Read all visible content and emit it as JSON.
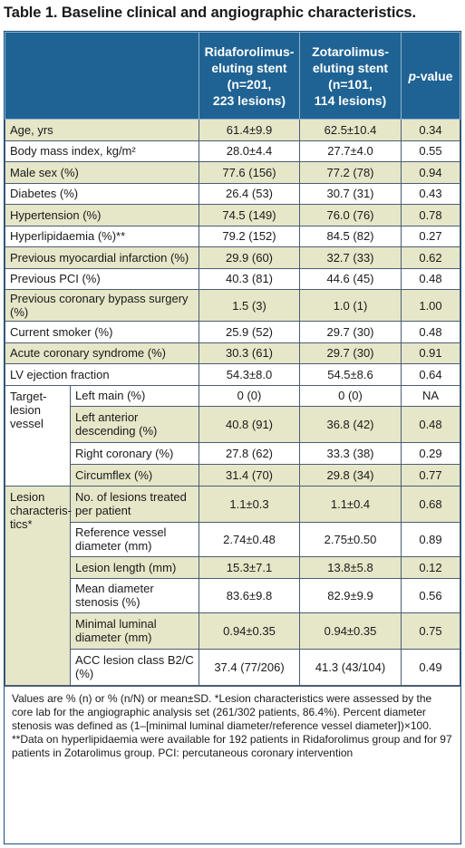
{
  "title": "Table 1. Baseline clinical and angiographic characteristics.",
  "headers": {
    "col1": [
      "Ridaforolimus-",
      "eluting stent",
      "(n=201,",
      "223 lesions)"
    ],
    "col2": [
      "Zotarolimus-",
      "eluting stent",
      "(n=101,",
      "114 lesions)"
    ],
    "pvalue_italic": "p",
    "pvalue_rest": "-value"
  },
  "rows": [
    {
      "label": "Age, yrs",
      "a": "61.4±9.9",
      "b": "62.5±10.4",
      "p": "0.34"
    },
    {
      "label": "Body mass index, kg/m²",
      "a": "28.0±4.4",
      "b": "27.7±4.0",
      "p": "0.55"
    },
    {
      "label": "Male sex (%)",
      "a": "77.6 (156)",
      "b": "77.2 (78)",
      "p": "0.94"
    },
    {
      "label": "Diabetes (%)",
      "a": "26.4 (53)",
      "b": "30.7 (31)",
      "p": "0.43"
    },
    {
      "label": "Hypertension (%)",
      "a": "74.5 (149)",
      "b": "76.0 (76)",
      "p": "0.78"
    },
    {
      "label": "Hyperlipidaemia (%)**",
      "a": "79.2 (152)",
      "b": "84.5 (82)",
      "p": "0.27"
    },
    {
      "label": "Previous myocardial infarction (%)",
      "a": "29.9 (60)",
      "b": "32.7 (33)",
      "p": "0.62"
    },
    {
      "label": "Previous PCI (%)",
      "a": "40.3 (81)",
      "b": "44.6 (45)",
      "p": "0.48"
    },
    {
      "label": "Previous coronary bypass surgery (%)",
      "a": "1.5 (3)",
      "b": "1.0 (1)",
      "p": "1.00"
    },
    {
      "label": "Current smoker (%)",
      "a": "25.9 (52)",
      "b": "29.7 (30)",
      "p": "0.48"
    },
    {
      "label": "Acute coronary syndrome (%)",
      "a": "30.3 (61)",
      "b": "29.7 (30)",
      "p": "0.91"
    },
    {
      "label": "LV ejection fraction",
      "a": "54.3±8.0",
      "b": "54.5±8.6",
      "p": "0.64"
    }
  ],
  "target_vessel": {
    "group": [
      "Target-",
      "lesion",
      "vessel"
    ],
    "rows": [
      {
        "label": "Left main (%)",
        "a": "0 (0)",
        "b": "0 (0)",
        "p": "NA"
      },
      {
        "label": "Left anterior descending (%)",
        "a": "40.8 (91)",
        "b": "36.8 (42)",
        "p": "0.48"
      },
      {
        "label": "Right coronary (%)",
        "a": "27.8 (62)",
        "b": "33.3 (38)",
        "p": "0.29"
      },
      {
        "label": "Circumflex (%)",
        "a": "31.4 (70)",
        "b": "29.8 (34)",
        "p": "0.77"
      }
    ]
  },
  "lesion": {
    "group": [
      "Lesion",
      "characteris-",
      "tics*"
    ],
    "rows": [
      {
        "label": "No. of lesions treated per patient",
        "a": "1.1±0.3",
        "b": "1.1±0.4",
        "p": "0.68"
      },
      {
        "label": "Reference vessel diameter (mm)",
        "a": "2.74±0.48",
        "b": "2.75±0.50",
        "p": "0.89"
      },
      {
        "label": "Lesion length (mm)",
        "a": "15.3±7.1",
        "b": "13.8±5.8",
        "p": "0.12"
      },
      {
        "label": "Mean diameter stenosis (%)",
        "a": "83.6±9.8",
        "b": "82.9±9.9",
        "p": "0.56"
      },
      {
        "label": "Minimal luminal diameter (mm)",
        "a": "0.94±0.35",
        "b": "0.94±0.35",
        "p": "0.75"
      },
      {
        "label": "ACC lesion class B2/C (%)",
        "a": "37.4 (77/206)",
        "b": "41.3 (43/104)",
        "p": "0.49"
      }
    ]
  },
  "footnote": "Values are % (n) or % (n/N) or mean±SD. *Lesion characteristics were assessed by the core lab for the angiographic analysis set (261/302 patients, 86.4%). Percent diameter stenosis was defined as (1–[minimal luminal diameter/reference vessel diameter])×100. **Data on hyperlipidaemia were available for 192 patients in Ridaforolimus group and for 97 patients in Zotarolimus group. PCI: percutaneous coronary intervention"
}
